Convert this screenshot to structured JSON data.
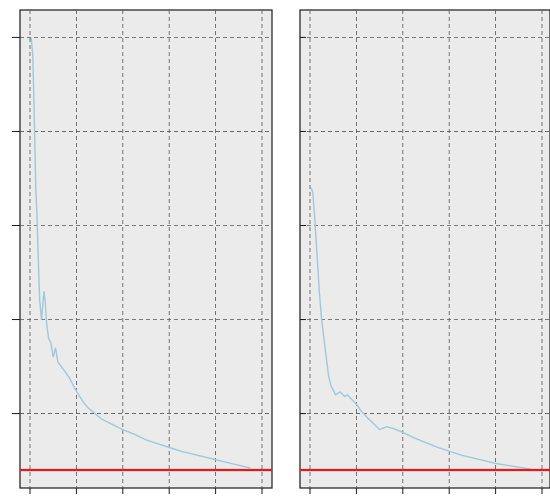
{
  "chart_data": [
    {
      "type": "line",
      "title": "",
      "xlabel": "",
      "ylabel": "",
      "xlim": [
        0,
        10
      ],
      "ylim": [
        0,
        4.7
      ],
      "grid": true,
      "x_ticks": [
        0,
        2,
        4,
        6,
        8,
        10
      ],
      "y_ticks": [
        0.6,
        1.6,
        2.6,
        3.6,
        4.6
      ],
      "colors": {
        "series": "#9ec8dc",
        "baseline": "#e41a1c",
        "panel": "#ebebeb"
      },
      "series": [
        {
          "x": [
            0.05,
            0.12,
            0.18,
            0.25,
            0.3,
            0.35,
            0.42,
            0.5,
            0.6,
            0.65,
            0.72,
            0.8,
            0.9,
            1.0,
            1.1,
            1.2,
            1.35,
            1.5,
            1.7,
            1.9,
            2.1,
            2.3,
            2.5,
            2.8,
            3.1,
            3.5,
            4.0,
            4.5,
            5.0,
            5.5,
            6.0,
            6.5,
            7.0,
            7.5,
            8.0,
            8.5,
            9.0,
            9.5
          ],
          "y": [
            4.6,
            4.4,
            3.8,
            3.0,
            2.7,
            2.3,
            1.8,
            1.6,
            1.9,
            1.8,
            1.55,
            1.4,
            1.35,
            1.2,
            1.3,
            1.15,
            1.1,
            1.05,
            0.98,
            0.88,
            0.8,
            0.72,
            0.66,
            0.6,
            0.54,
            0.49,
            0.43,
            0.38,
            0.32,
            0.28,
            0.24,
            0.2,
            0.17,
            0.14,
            0.11,
            0.08,
            0.05,
            0.02
          ]
        }
      ],
      "hline": 0
    },
    {
      "type": "line",
      "title": "",
      "xlabel": "",
      "ylabel": "",
      "xlim": [
        0,
        10
      ],
      "ylim": [
        0,
        4.7
      ],
      "grid": true,
      "x_ticks": [
        0,
        2,
        4,
        6,
        8,
        10
      ],
      "y_ticks": [
        0.6,
        1.6,
        2.6,
        3.6,
        4.6
      ],
      "colors": {
        "series": "#9ec8dc",
        "baseline": "#e41a1c",
        "panel": "#ebebeb"
      },
      "series": [
        {
          "x": [
            0.05,
            0.12,
            0.2,
            0.3,
            0.4,
            0.5,
            0.6,
            0.7,
            0.8,
            0.9,
            1.0,
            1.1,
            1.3,
            1.5,
            1.6,
            1.8,
            2.0,
            2.2,
            2.5,
            2.8,
            3.0,
            3.3,
            3.6,
            4.0,
            4.5,
            5.0,
            5.5,
            6.0,
            6.5,
            7.0,
            7.5,
            8.0,
            8.5,
            9.0,
            9.5
          ],
          "y": [
            3.0,
            2.95,
            2.7,
            2.3,
            1.9,
            1.6,
            1.4,
            1.2,
            1.0,
            0.9,
            0.85,
            0.8,
            0.83,
            0.78,
            0.8,
            0.75,
            0.7,
            0.63,
            0.55,
            0.48,
            0.43,
            0.46,
            0.44,
            0.4,
            0.34,
            0.29,
            0.24,
            0.2,
            0.16,
            0.13,
            0.1,
            0.07,
            0.05,
            0.03,
            0.01
          ]
        }
      ],
      "hline": 0
    }
  ]
}
